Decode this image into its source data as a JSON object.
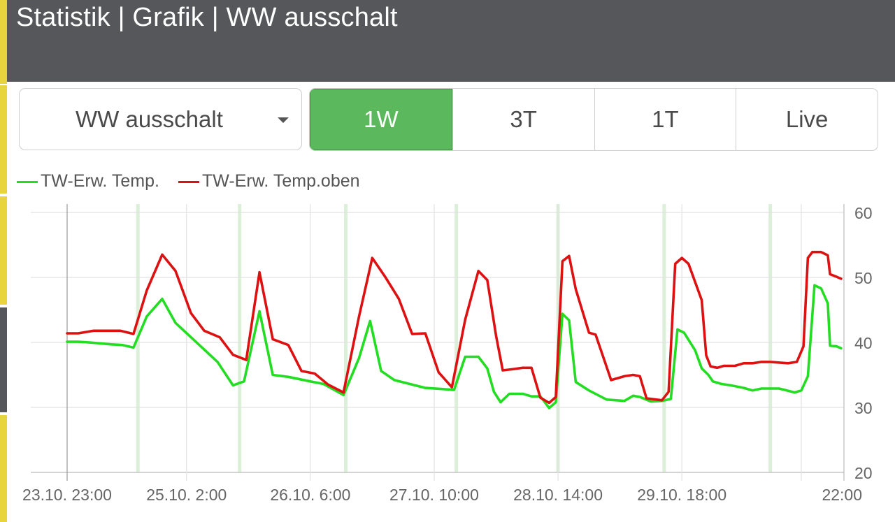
{
  "header": {
    "title": "Statistik | Grafik | WW ausschalt"
  },
  "sidebar_accent_colors": [
    "#e8d53e",
    "#56575b"
  ],
  "selector": {
    "value": "WW ausschalt",
    "icon": "chevron-down-icon"
  },
  "range_buttons": [
    {
      "label": "1W",
      "active": true
    },
    {
      "label": "3T",
      "active": false
    },
    {
      "label": "1T",
      "active": false
    },
    {
      "label": "Live",
      "active": false
    }
  ],
  "colors": {
    "header_bg": "#56575b",
    "active": "#5cb85c",
    "band": "#dcefd9",
    "grid": "#e2e2e2"
  },
  "chart_data": {
    "type": "line",
    "title": "",
    "xlabel": "",
    "ylabel": "",
    "ylim": [
      20,
      60
    ],
    "y_ticks": [
      20,
      30,
      40,
      50,
      60
    ],
    "y_axis_side": "right",
    "grid": true,
    "legend_position": "top-left",
    "x_range_hours": [
      0,
      143
    ],
    "x_tick_labels": [
      {
        "t": 0,
        "label": "23.10. 23:00"
      },
      {
        "t": 27,
        "label": "25.10. 2:00"
      },
      {
        "t": 55,
        "label": "26.10. 6:00"
      },
      {
        "t": 83,
        "label": "27.10. 10:00"
      },
      {
        "t": 111,
        "label": "28.10. 14:00"
      },
      {
        "t": 139,
        "label": "29.10. 18:00"
      },
      {
        "t": 166,
        "label": "22:00"
      }
    ],
    "highlight_bands_hours": [
      16,
      39,
      63,
      88,
      111,
      135,
      159
    ],
    "series": [
      {
        "name": "TW-Erw. Temp.",
        "color": "#22dd22",
        "points": [
          [
            0,
            40.1
          ],
          [
            2.5,
            40.1
          ],
          [
            5,
            40
          ],
          [
            10,
            39.7
          ],
          [
            12.5,
            39.6
          ],
          [
            15,
            39.2
          ],
          [
            18,
            44
          ],
          [
            21.5,
            46.7
          ],
          [
            24.5,
            43
          ],
          [
            28,
            40.8
          ],
          [
            34,
            37
          ],
          [
            37.5,
            33.4
          ],
          [
            40,
            34
          ],
          [
            43.5,
            44.8
          ],
          [
            46.5,
            35
          ],
          [
            50,
            34.7
          ],
          [
            55,
            34
          ],
          [
            58,
            33.6
          ],
          [
            62.5,
            31.9
          ],
          [
            66,
            37.6
          ],
          [
            68.5,
            43.3
          ],
          [
            71,
            35.6
          ],
          [
            74,
            34.2
          ],
          [
            81,
            33
          ],
          [
            87.5,
            32.7
          ],
          [
            90,
            37.8
          ],
          [
            93,
            37.8
          ],
          [
            95,
            36
          ],
          [
            96.5,
            32.4
          ],
          [
            98,
            30.8
          ],
          [
            100,
            32.1
          ],
          [
            103,
            32.1
          ],
          [
            105,
            31.7
          ],
          [
            107,
            31.7
          ],
          [
            109,
            29.9
          ],
          [
            110.5,
            30.8
          ],
          [
            112,
            44.4
          ],
          [
            113.5,
            43.4
          ],
          [
            115,
            33.9
          ],
          [
            118,
            32.6
          ],
          [
            122,
            31.2
          ],
          [
            126,
            31
          ],
          [
            128,
            31.8
          ],
          [
            129.5,
            31.6
          ],
          [
            132,
            30.9
          ],
          [
            134.5,
            31
          ],
          [
            136.5,
            31.3
          ],
          [
            138,
            42
          ],
          [
            139.5,
            41.5
          ],
          [
            142,
            38.8
          ],
          [
            143.5,
            36
          ],
          [
            145,
            35
          ],
          [
            146,
            34
          ],
          [
            148,
            33.6
          ],
          [
            150,
            33.4
          ],
          [
            153,
            33
          ],
          [
            155,
            32.6
          ],
          [
            157,
            32.9
          ],
          [
            161,
            32.9
          ],
          [
            164.5,
            32.3
          ],
          [
            166,
            32.6
          ],
          [
            167.5,
            34.8
          ],
          [
            169,
            48.8
          ],
          [
            170.5,
            48.3
          ],
          [
            172,
            46
          ],
          [
            172.5,
            39.5
          ],
          [
            174,
            39.4
          ],
          [
            175,
            39.1
          ]
        ]
      },
      {
        "name": "TW-Erw. Temp.oben",
        "color": "#dd1111",
        "points": [
          [
            0,
            41.4
          ],
          [
            2.5,
            41.4
          ],
          [
            6,
            41.8
          ],
          [
            12,
            41.8
          ],
          [
            15,
            41.3
          ],
          [
            18,
            48
          ],
          [
            21.5,
            53.5
          ],
          [
            24.5,
            51
          ],
          [
            28,
            44.5
          ],
          [
            31,
            41.8
          ],
          [
            34.5,
            40.8
          ],
          [
            37.5,
            38.1
          ],
          [
            40.5,
            37.3
          ],
          [
            43.5,
            50.8
          ],
          [
            46.5,
            40.5
          ],
          [
            50,
            39.6
          ],
          [
            53,
            35.6
          ],
          [
            56,
            35.2
          ],
          [
            59,
            33.5
          ],
          [
            62.5,
            32.3
          ],
          [
            66,
            44
          ],
          [
            69,
            53
          ],
          [
            72,
            50
          ],
          [
            75,
            46.7
          ],
          [
            78,
            41.3
          ],
          [
            81,
            41.4
          ],
          [
            84,
            35.4
          ],
          [
            87,
            33.1
          ],
          [
            90,
            43.5
          ],
          [
            93,
            51
          ],
          [
            95,
            49.6
          ],
          [
            97,
            41
          ],
          [
            98.5,
            35.7
          ],
          [
            101,
            35.9
          ],
          [
            103,
            36.1
          ],
          [
            105,
            36.1
          ],
          [
            107,
            31.5
          ],
          [
            109,
            30.7
          ],
          [
            110.5,
            31.6
          ],
          [
            112,
            52.5
          ],
          [
            113.5,
            53.3
          ],
          [
            115,
            48.2
          ],
          [
            118,
            41.5
          ],
          [
            119.5,
            41.2
          ],
          [
            123,
            34.2
          ],
          [
            126,
            34.8
          ],
          [
            128,
            35
          ],
          [
            129.5,
            34.8
          ],
          [
            131,
            31.4
          ],
          [
            134.5,
            31.1
          ],
          [
            136,
            32.4
          ],
          [
            137.5,
            52.1
          ],
          [
            139,
            53
          ],
          [
            140.5,
            52.1
          ],
          [
            143.5,
            46.5
          ],
          [
            144.5,
            38
          ],
          [
            145.5,
            36.3
          ],
          [
            147,
            36.1
          ],
          [
            148.5,
            36.4
          ],
          [
            151,
            36.4
          ],
          [
            153,
            36.8
          ],
          [
            155,
            36.8
          ],
          [
            157,
            37
          ],
          [
            159,
            37
          ],
          [
            163,
            36.8
          ],
          [
            165,
            37
          ],
          [
            166.5,
            39.4
          ],
          [
            167.5,
            53
          ],
          [
            168.5,
            53.9
          ],
          [
            170.5,
            53.9
          ],
          [
            172,
            53.4
          ],
          [
            172.5,
            50.5
          ],
          [
            174,
            50.1
          ],
          [
            175,
            49.8
          ]
        ]
      }
    ]
  }
}
